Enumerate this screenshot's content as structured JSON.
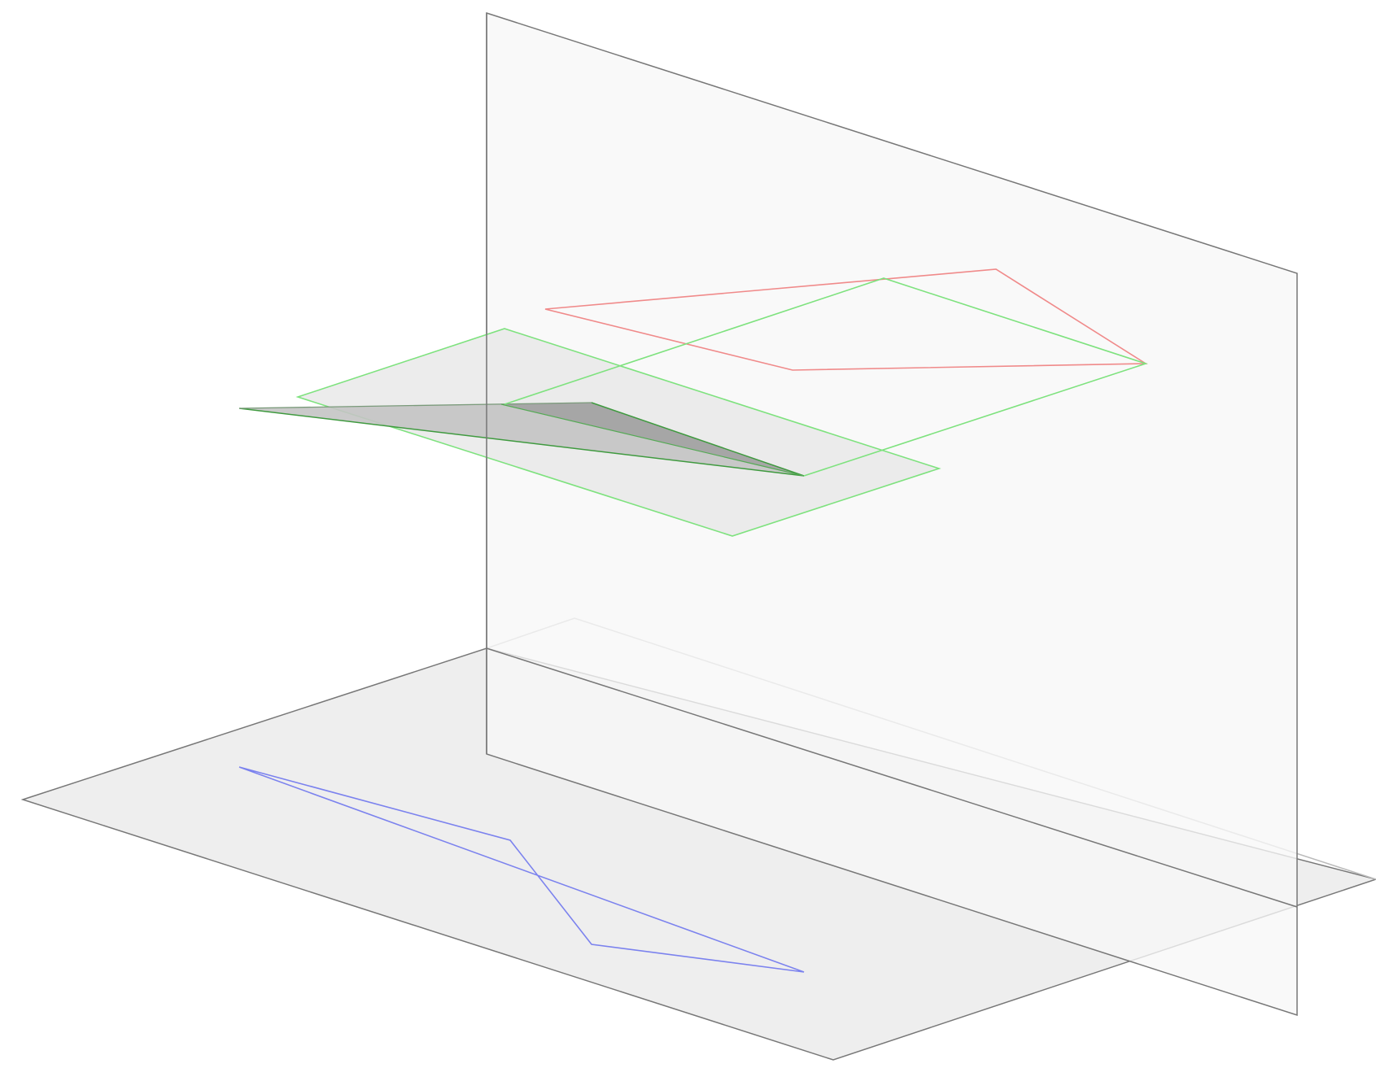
{
  "figure": {
    "description_visible_text": "",
    "colors": {
      "background": "#ffffff",
      "horizontal_plane_fill": "#eeeeee",
      "vertical_plane_fill": "#f7f7f7",
      "plane_edge": "#777777",
      "plane_edge_faint": "#bbbbbb",
      "green_outline": "#7ee27e",
      "red_outline": "#f08a8a",
      "blue_outline": "#7b82ee",
      "dark_green_edge": "#3f9a3f",
      "section_fill_light": "#c4c4c4",
      "section_fill_dark": "#a6a6a6",
      "green_plane_fill": "#e6e6e6"
    },
    "elements": [
      "horizontal-projection-plane",
      "vertical-projection-plane",
      "green-cutting-plane",
      "shaded-section",
      "red-frontal-projection",
      "blue-horizontal-projection"
    ]
  }
}
